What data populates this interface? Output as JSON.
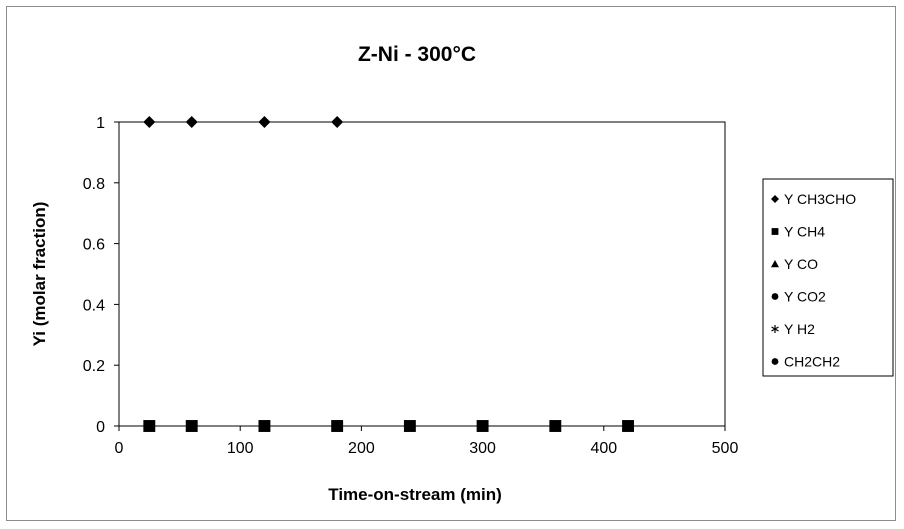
{
  "chart_data": {
    "type": "scatter",
    "title": "Z-Ni  - 300°C",
    "xlabel": "Time-on-stream (min)",
    "ylabel": "Yi (molar fraction)",
    "xlim": [
      0,
      500
    ],
    "ylim": [
      0,
      1
    ],
    "xticks": [
      "0",
      "100",
      "200",
      "300",
      "400",
      "500"
    ],
    "yticks": [
      "0",
      "0.2",
      "0.4",
      "0.6",
      "0.8",
      "1"
    ],
    "grid": false,
    "legend_position": "right",
    "series": [
      {
        "name": "Y CH3CHO",
        "marker": "diamond",
        "color": "#000000",
        "x": [
          25,
          60,
          120,
          180
        ],
        "y": [
          1,
          1,
          1,
          1
        ]
      },
      {
        "name": "Y CH4",
        "marker": "square",
        "color": "#000000",
        "x": [
          25,
          60,
          120,
          180,
          240,
          300,
          360,
          420
        ],
        "y": [
          0,
          0,
          0,
          0,
          0,
          0,
          0,
          0
        ]
      },
      {
        "name": "Y CO",
        "marker": "triangle",
        "color": "#000000",
        "x": [],
        "y": []
      },
      {
        "name": "Y CO2",
        "marker": "circle",
        "color": "#000000",
        "x": [],
        "y": []
      },
      {
        "name": "Y H2",
        "marker": "asterisk",
        "color": "#000000",
        "x": [],
        "y": []
      },
      {
        "name": "CH2CH2",
        "marker": "circle",
        "color": "#000000",
        "x": [],
        "y": []
      }
    ]
  }
}
